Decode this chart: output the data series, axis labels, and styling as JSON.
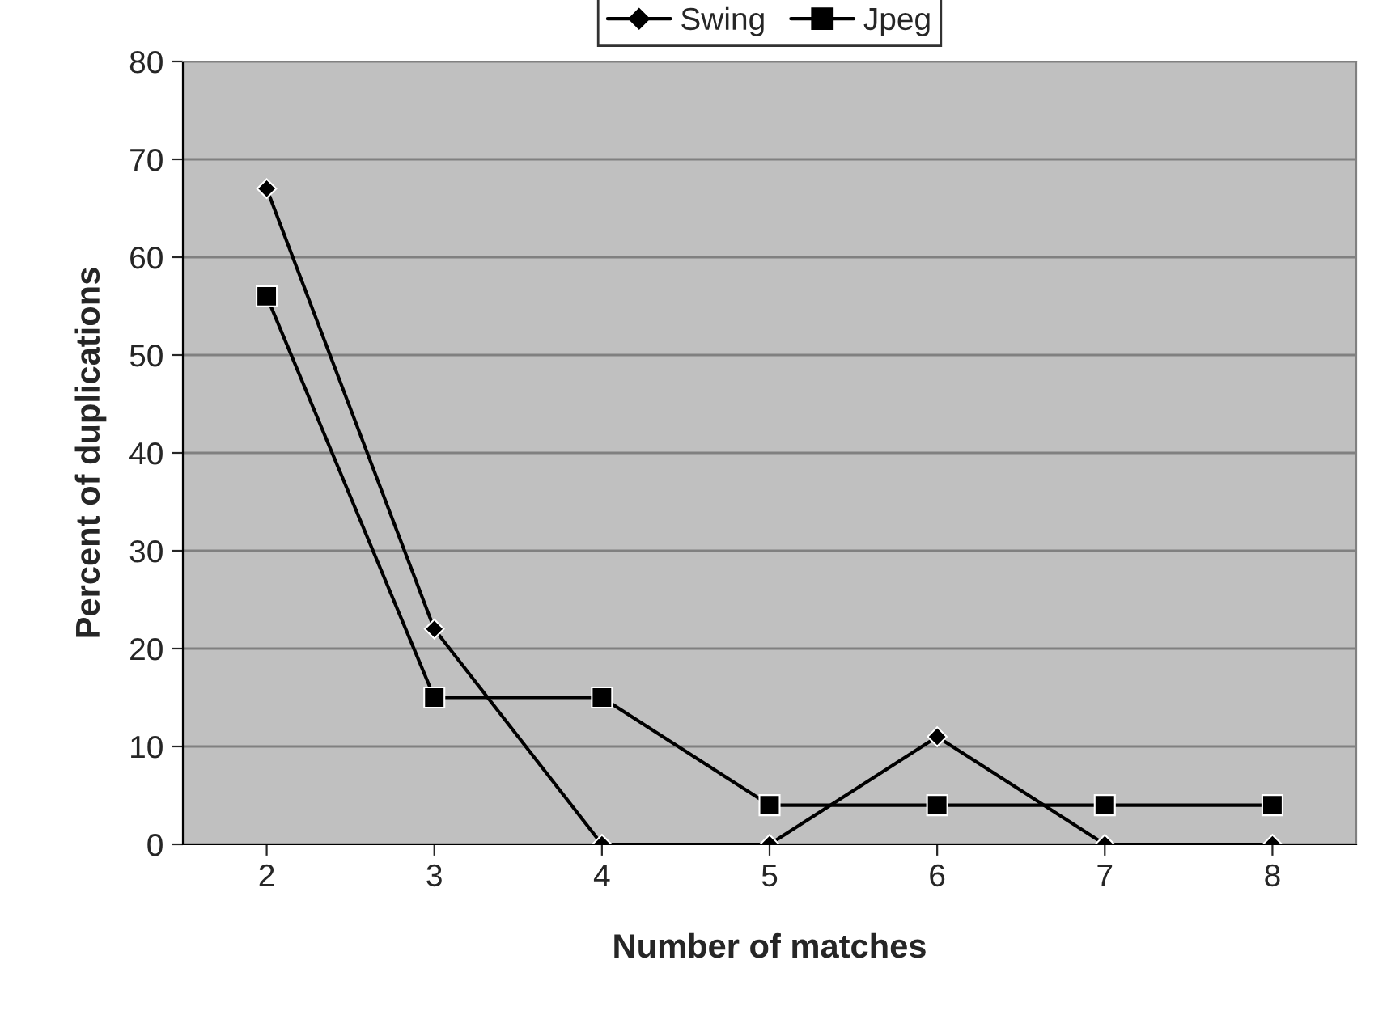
{
  "chart_data": {
    "type": "line",
    "xlabel": "Number of matches",
    "ylabel": "Percent of duplications",
    "categories": [
      "2",
      "3",
      "4",
      "5",
      "6",
      "7",
      "8"
    ],
    "series": [
      {
        "name": "Swing",
        "color": "#000000",
        "marker": "diamond",
        "values": [
          67,
          22,
          0,
          0,
          11,
          0,
          0
        ]
      },
      {
        "name": "Jpeg",
        "color": "#000000",
        "marker": "square",
        "values": [
          56,
          15,
          15,
          4,
          4,
          4,
          4
        ]
      }
    ],
    "ylim": [
      0,
      80
    ],
    "yticks": [
      0,
      10,
      20,
      30,
      40,
      50,
      60,
      70,
      80
    ],
    "grid": "y",
    "legend": "top",
    "line_style": "solid"
  }
}
